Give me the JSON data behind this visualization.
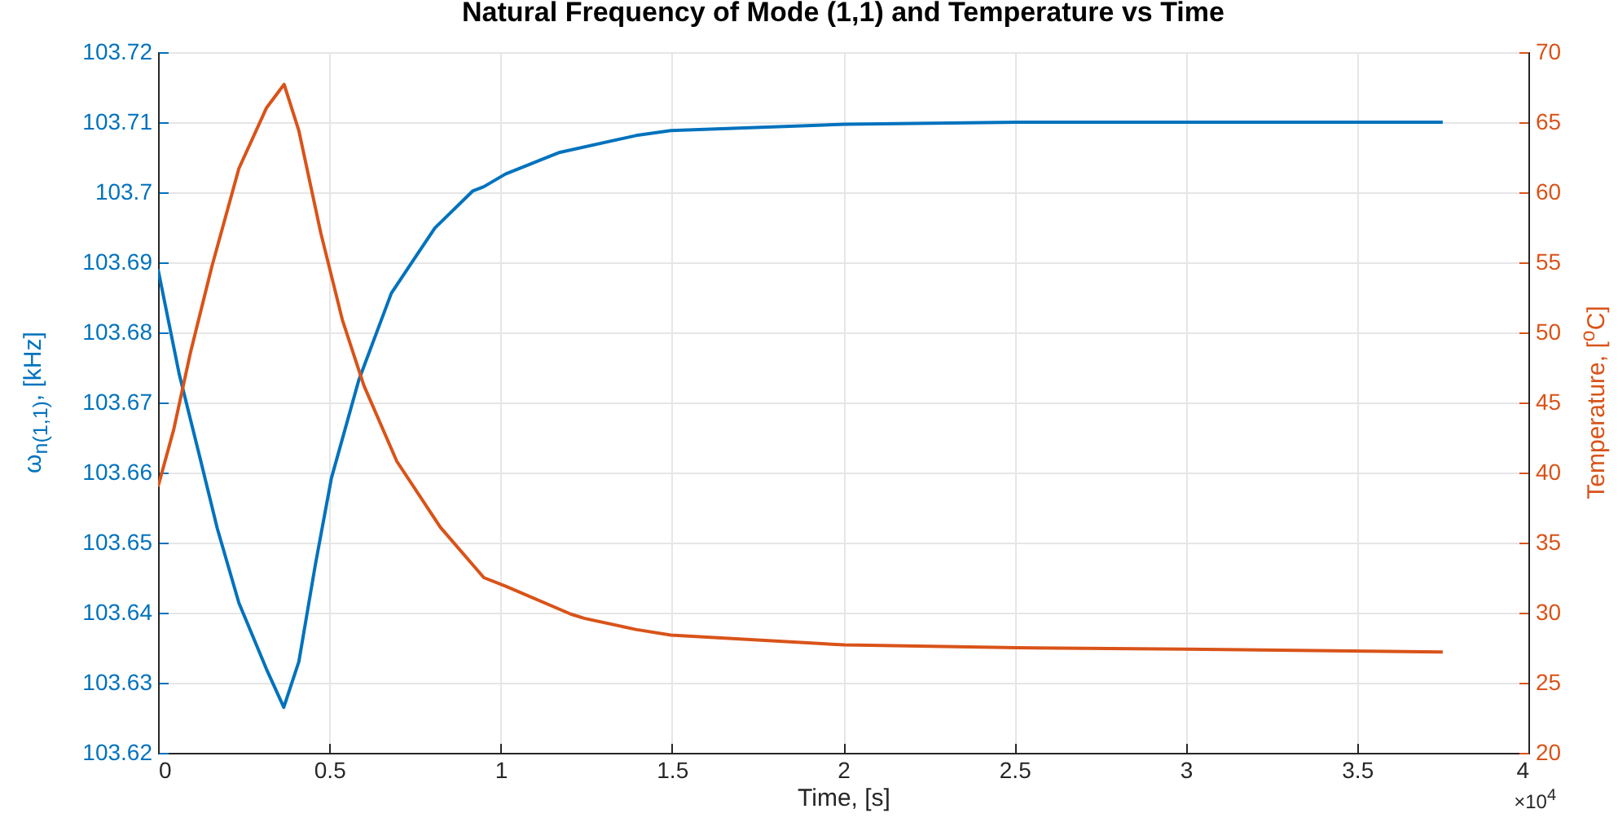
{
  "chart_data": {
    "type": "line",
    "title": "Natural Frequency of Mode (1,1) and Temperature vs Time",
    "xlabel": "Time, [s]",
    "ylabel": "ω$_{n(1,1)}$, [kHz]",
    "y2label": "Temperature, [$^{o}$C]",
    "annotations": [
      "×10$^{4}$"
    ],
    "xlim": [
      0,
      4
    ],
    "xticks": [
      0,
      0.5,
      1,
      1.5,
      2,
      2.5,
      3,
      3.5,
      4
    ],
    "ylim": [
      103.62,
      103.72
    ],
    "yticks": [
      103.62,
      103.63,
      103.64,
      103.65,
      103.66,
      103.67,
      103.68,
      103.69,
      103.7,
      103.71,
      103.72
    ],
    "y2lim": [
      20,
      70
    ],
    "y2ticks": [
      20,
      25,
      30,
      35,
      40,
      45,
      50,
      55,
      60,
      65,
      70
    ],
    "grid": true,
    "series": [
      {
        "color": "#0072bd",
        "x": [
          0,
          0.062,
          0.125,
          0.173,
          0.236,
          0.316,
          0.367,
          0.411,
          0.459,
          0.506,
          0.586,
          0.681,
          0.808,
          0.919,
          0.951,
          1.014,
          1.146,
          1.173,
          1.395,
          1.497,
          2.004,
          2.51,
          3.0,
          3.75
        ],
        "values": [
          103.689,
          103.674,
          103.6616,
          103.652,
          103.6414,
          103.632,
          103.6265,
          103.633,
          103.6468,
          103.6592,
          103.6732,
          103.6856,
          103.6949,
          103.7002,
          103.7008,
          103.7026,
          103.7052,
          103.7057,
          103.7081,
          103.7088,
          103.7097,
          103.71,
          103.71,
          103.71
        ]
      },
      {
        "color": "#d95319",
        "axis": "y2",
        "x": [
          0,
          0.046,
          0.094,
          0.157,
          0.236,
          0.316,
          0.368,
          0.411,
          0.475,
          0.538,
          0.601,
          0.697,
          0.824,
          0.951,
          1.014,
          1.205,
          1.244,
          1.395,
          1.497,
          2.004,
          2.51,
          3.0,
          3.75
        ],
        "values": [
          39.0,
          43.1,
          48.5,
          54.7,
          61.7,
          66.0,
          67.7,
          64.4,
          57.1,
          50.9,
          46.2,
          40.8,
          36.1,
          32.5,
          31.9,
          29.9,
          29.6,
          28.8,
          28.4,
          27.7,
          27.5,
          27.4,
          27.2
        ]
      }
    ]
  }
}
